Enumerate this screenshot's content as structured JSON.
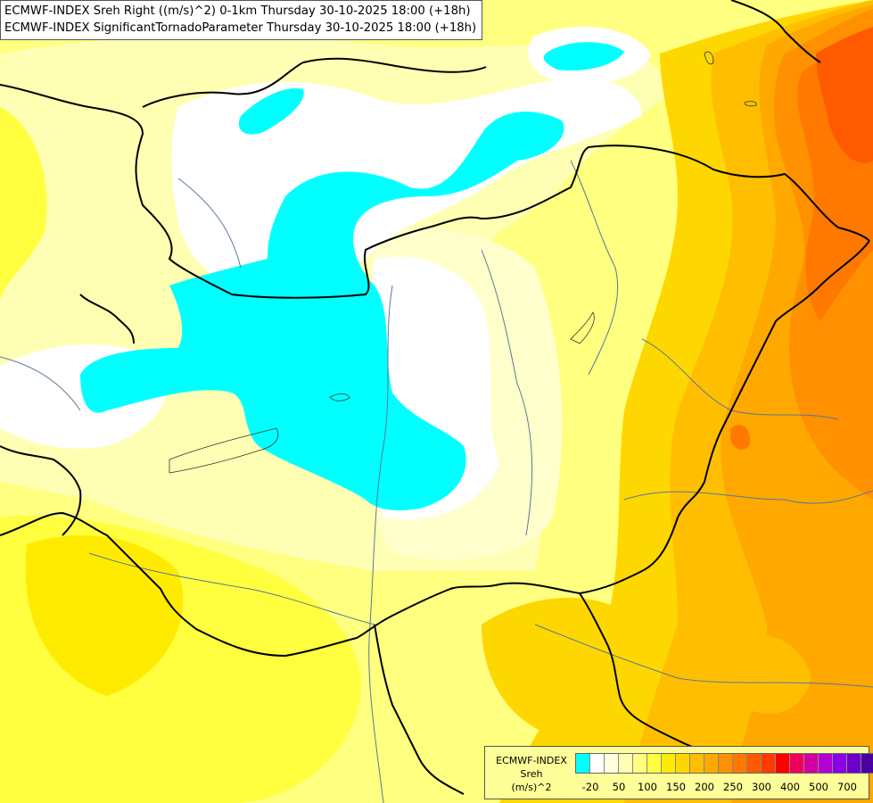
{
  "header": {
    "line1": "ECMWF-INDEX Sreh Right ((m/s)^2) 0-1km Thursday 30-10-2025 18:00 (+18h)",
    "line2": "ECMWF-INDEX SignificantTornadoParameter Thursday 30-10-2025 18:00 (+18h)"
  },
  "legend": {
    "title": "ECMWF-INDEX",
    "variable": "Sreh",
    "unit": "(m/s)^2",
    "swatch_colors": [
      "#00ffff",
      "#ffffff",
      "#ffffe0",
      "#ffffb3",
      "#ffff80",
      "#ffff40",
      "#ffeb00",
      "#ffd700",
      "#ffbf00",
      "#ffa800",
      "#ff9000",
      "#ff7800",
      "#ff5a00",
      "#ff3c00",
      "#ff0000",
      "#f0005a",
      "#d2009e",
      "#b400d2",
      "#8c00e6",
      "#6e00c8",
      "#4b00a0",
      "#000080"
    ],
    "ticks": [
      "-20",
      "50",
      "100",
      "150",
      "200",
      "250",
      "300",
      "400",
      "500",
      "700"
    ]
  },
  "colors": {
    "background": "#ffff99",
    "cyan": "#00ffff",
    "borders": "#000000",
    "rivers": "#5a7896"
  }
}
